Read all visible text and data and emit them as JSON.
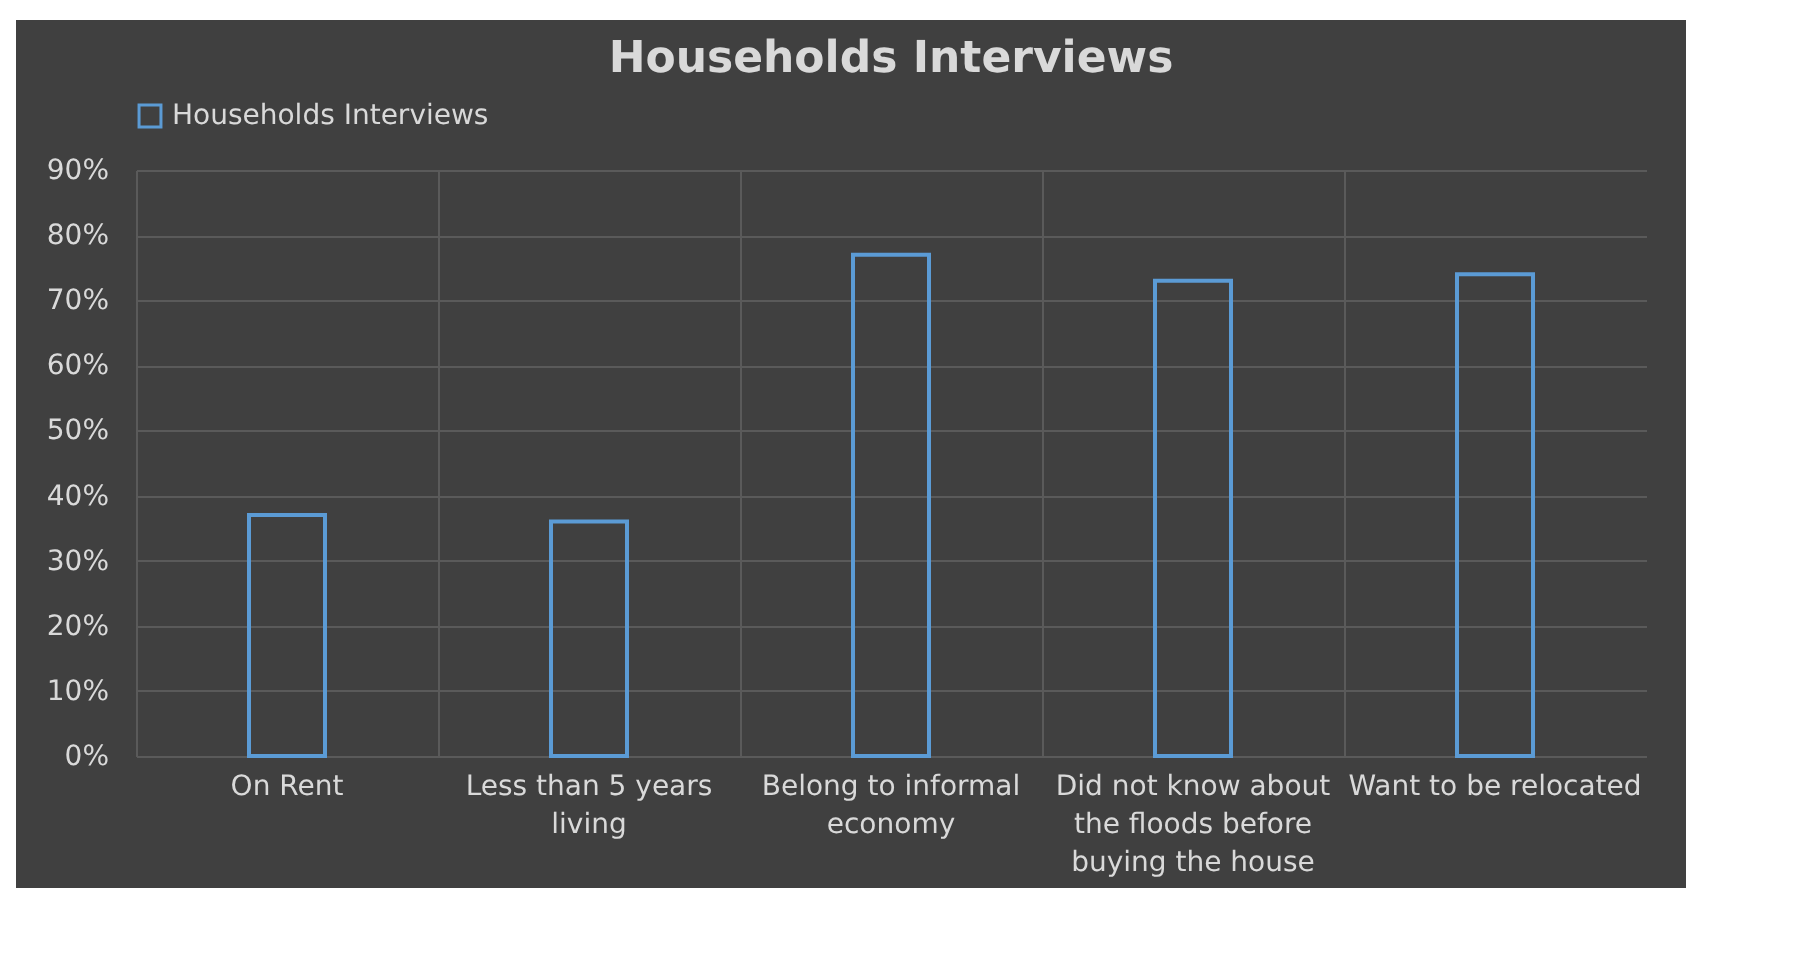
{
  "chart_data": {
    "type": "bar",
    "title": "Households Interviews",
    "categories": [
      "On Rent",
      "Less than 5 years living",
      "Belong to informal economy",
      "Did not know about the floods before buying the house",
      "Want to be relocated"
    ],
    "series": [
      {
        "name": "Households Interviews",
        "color": "#5b9bd5",
        "values": [
          37,
          36,
          77,
          73,
          74
        ]
      }
    ],
    "ylim": [
      0,
      90
    ],
    "yticks": [
      {
        "value": 0,
        "label": "0%"
      },
      {
        "value": 10,
        "label": "10%"
      },
      {
        "value": 20,
        "label": "20%"
      },
      {
        "value": 30,
        "label": "30%"
      },
      {
        "value": 40,
        "label": "40%"
      },
      {
        "value": 50,
        "label": "50%"
      },
      {
        "value": 60,
        "label": "60%"
      },
      {
        "value": 70,
        "label": "70%"
      },
      {
        "value": 80,
        "label": "80%"
      },
      {
        "value": 90,
        "label": "90%"
      }
    ],
    "grid": true,
    "legend": "top"
  }
}
